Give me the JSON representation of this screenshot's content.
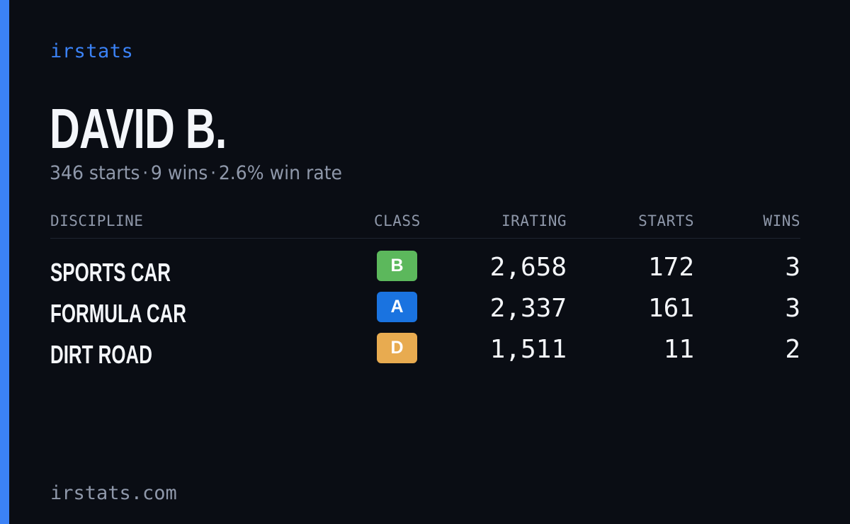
{
  "brand": "irstats",
  "player": {
    "name": "DAVID B.",
    "starts_text": "346 starts",
    "wins_text": "9 wins",
    "win_rate_text": "2.6% win rate",
    "separator": "·"
  },
  "table": {
    "headers": {
      "discipline": "DISCIPLINE",
      "class": "CLASS",
      "irating": "IRATING",
      "starts": "STARTS",
      "wins": "WINS"
    },
    "rows": [
      {
        "discipline": "SPORTS CAR",
        "class": "B",
        "class_color": "#5cb85c",
        "irating": "2,658",
        "starts": "172",
        "wins": "3"
      },
      {
        "discipline": "FORMULA CAR",
        "class": "A",
        "class_color": "#1a73e0",
        "irating": "2,337",
        "starts": "161",
        "wins": "3"
      },
      {
        "discipline": "DIRT ROAD",
        "class": "D",
        "class_color": "#e8ab50",
        "irating": "1,511",
        "starts": "11",
        "wins": "2"
      }
    ]
  },
  "footer": "irstats.com",
  "colors": {
    "background": "#0a0d14",
    "accent": "#3b82f6",
    "muted_text": "#8f98aa"
  }
}
